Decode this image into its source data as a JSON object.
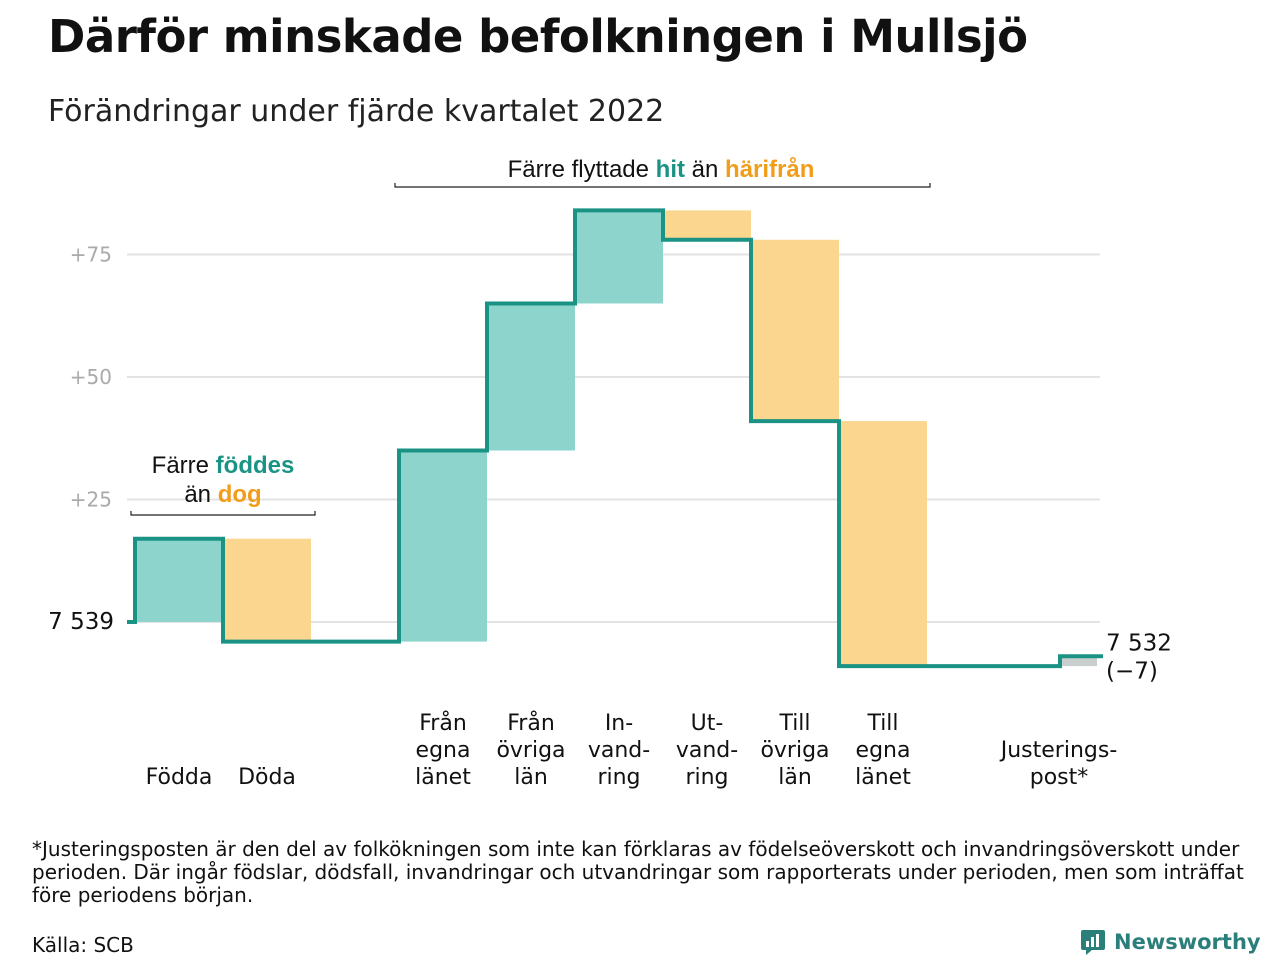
{
  "title": "Därför minskade befolkningen i Mullsjö",
  "subtitle": "Förändringar under fjärde kvartalet 2022",
  "colors": {
    "line": "#1a9384",
    "positive": "#8dd5cc",
    "negative": "#fad68e",
    "adjustment": "#c9cfcc",
    "grid": "#e3e3e3",
    "tick": "#aaaaaa",
    "accent_teal": "#1a9384",
    "accent_orange": "#f29d1a"
  },
  "chart_data": {
    "type": "waterfall",
    "start_value": 7539,
    "start_label": "7 539",
    "end_label": "7 532",
    "end_change_label": "(−7)",
    "ylim": [
      -10,
      88
    ],
    "yticks": [
      {
        "value": 25,
        "label": "+25"
      },
      {
        "value": 50,
        "label": "+50"
      },
      {
        "value": 75,
        "label": "+75"
      }
    ],
    "grid": true,
    "steps": [
      {
        "label_lines": [
          "Födda"
        ],
        "value": 17,
        "kind": "positive"
      },
      {
        "label_lines": [
          "Döda"
        ],
        "value": -21,
        "kind": "negative"
      },
      {
        "label_lines": [],
        "value": 0,
        "kind": "gap"
      },
      {
        "label_lines": [
          "Från",
          "egna",
          "länet"
        ],
        "value": 39,
        "kind": "positive"
      },
      {
        "label_lines": [
          "Från",
          "övriga",
          "län"
        ],
        "value": 30,
        "kind": "positive"
      },
      {
        "label_lines": [
          "In-",
          "vand-",
          "ring"
        ],
        "value": 19,
        "kind": "positive"
      },
      {
        "label_lines": [
          "Ut-",
          "vand-",
          "ring"
        ],
        "value": -6,
        "kind": "negative"
      },
      {
        "label_lines": [
          "Till",
          "övriga",
          "län"
        ],
        "value": -37,
        "kind": "negative"
      },
      {
        "label_lines": [
          "Till",
          "egna",
          "länet"
        ],
        "value": -50,
        "kind": "negative"
      },
      {
        "label_lines": [],
        "value": 0,
        "kind": "gap"
      },
      {
        "label_lines": [
          "Justerings-",
          "post*"
        ],
        "value": 2,
        "kind": "adjustment"
      }
    ],
    "annotations": [
      {
        "id": "births",
        "lines": [
          [
            {
              "text": "Färre ",
              "style": "plain"
            },
            {
              "text": "föddes",
              "style": "teal"
            }
          ],
          [
            {
              "text": "än ",
              "style": "plain"
            },
            {
              "text": "dog",
              "style": "orange"
            }
          ]
        ]
      },
      {
        "id": "migration",
        "lines": [
          [
            {
              "text": "Färre flyttade ",
              "style": "plain"
            },
            {
              "text": "hit",
              "style": "teal"
            },
            {
              "text": " än ",
              "style": "plain"
            },
            {
              "text": "härifrån",
              "style": "orange"
            }
          ]
        ]
      }
    ]
  },
  "footnote": "*Justeringsposten är den del av folkökningen som inte kan förklaras av födelseöverskott och invandringsöverskott under perioden. Där ingår födslar, dödsfall, invandringar och utvandringar som rapporterats under perioden, men som inträffat före periodens början.",
  "source": "Källa: SCB",
  "brand": {
    "name": "Newsworthy",
    "icon": "newsworthy-logo-icon"
  }
}
